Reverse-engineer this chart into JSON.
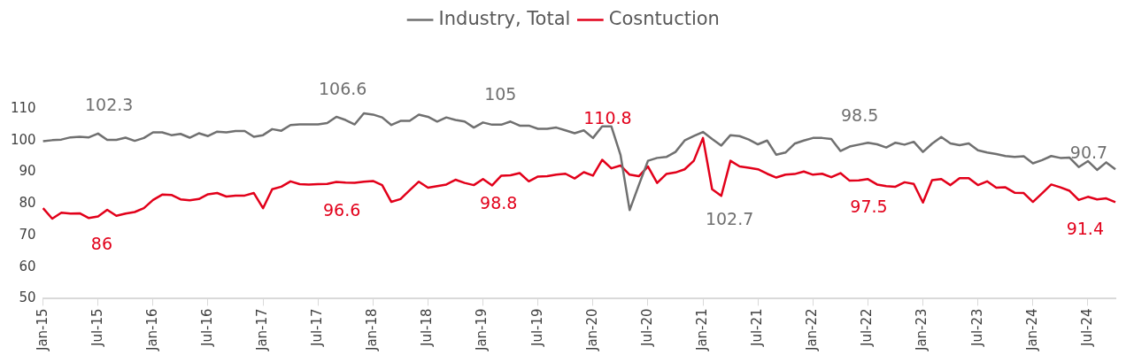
{
  "chart_data": {
    "type": "line",
    "legend": "top",
    "grid": false,
    "marker": "none",
    "line_style": "solid",
    "ylim": [
      50,
      110
    ],
    "yticks": [
      50,
      60,
      70,
      80,
      90,
      100,
      110
    ],
    "categories": [
      "Jan-15",
      null,
      null,
      null,
      null,
      null,
      "Jul-15",
      null,
      null,
      null,
      null,
      null,
      "Jan-16",
      null,
      null,
      null,
      null,
      null,
      "Jul-16",
      null,
      null,
      null,
      null,
      null,
      "Jan-17",
      null,
      null,
      null,
      null,
      null,
      "Jul-17",
      null,
      null,
      null,
      null,
      null,
      "Jan-18",
      null,
      null,
      null,
      null,
      null,
      "Jul-18",
      null,
      null,
      null,
      null,
      null,
      "Jan-19",
      null,
      null,
      null,
      null,
      null,
      "Jul-19",
      null,
      null,
      null,
      null,
      null,
      "Jan-20",
      null,
      null,
      null,
      null,
      null,
      "Jul-20",
      null,
      null,
      null,
      null,
      null,
      "Jan-21",
      null,
      null,
      null,
      null,
      null,
      "Jul-21",
      null,
      null,
      null,
      null,
      null,
      "Jan-22",
      null,
      null,
      null,
      null,
      null,
      "Jul-22",
      null,
      null,
      null,
      null,
      null,
      "Jan-23",
      null,
      null,
      null,
      null,
      null,
      "Jul-23",
      null,
      null,
      null,
      null,
      null,
      "Jan-24",
      null,
      null,
      null,
      null,
      null,
      "Jul-24",
      null,
      null,
      null
    ],
    "series": [
      {
        "name": "Industry, Total",
        "color": "#707070",
        "values": [
          99.8,
          100.1,
          100.3,
          101.0,
          101.2,
          101.0,
          102.2,
          100.2,
          100.2,
          100.9,
          99.9,
          100.8,
          102.6,
          102.6,
          101.7,
          102.1,
          100.9,
          102.3,
          101.4,
          102.8,
          102.6,
          103.0,
          103.0,
          101.2,
          101.7,
          103.6,
          103.1,
          104.9,
          105.1,
          105.1,
          105.1,
          105.5,
          107.5,
          106.5,
          105.1,
          108.6,
          108.2,
          107.3,
          104.9,
          106.2,
          106.2,
          108.2,
          107.5,
          106.0,
          107.3,
          106.5,
          106.0,
          104.1,
          105.7,
          105.0,
          105.0,
          106.0,
          104.7,
          104.7,
          103.7,
          103.7,
          104.1,
          103.2,
          102.3,
          103.2,
          100.8,
          104.5,
          104.5,
          95.5,
          78.0,
          85.9,
          93.6,
          94.5,
          94.8,
          96.4,
          100.0,
          101.4,
          102.7,
          100.5,
          98.4,
          101.7,
          101.4,
          100.3,
          98.8,
          100.0,
          95.5,
          96.2,
          99.0,
          100.0,
          100.8,
          100.8,
          100.5,
          96.7,
          98.1,
          98.7,
          99.3,
          98.8,
          97.8,
          99.3,
          98.7,
          99.6,
          96.4,
          99.0,
          101.1,
          99.1,
          98.5,
          99.1,
          96.9,
          96.2,
          95.7,
          95.1,
          94.8,
          95.0,
          92.8,
          93.8,
          95.1,
          94.5,
          94.6,
          91.6,
          93.5,
          90.7,
          93.1,
          90.9
        ]
      },
      {
        "name": "Cosntuction",
        "color": "#e2001a",
        "values": [
          78.6,
          75.3,
          77.2,
          76.9,
          77.0,
          75.5,
          76.0,
          78.1,
          76.2,
          76.9,
          77.4,
          78.6,
          81.2,
          82.9,
          82.8,
          81.4,
          81.1,
          81.5,
          83.0,
          83.4,
          82.3,
          82.6,
          82.6,
          83.4,
          78.6,
          84.6,
          85.4,
          87.1,
          86.2,
          86.1,
          86.2,
          86.3,
          86.9,
          86.7,
          86.6,
          87.0,
          87.2,
          85.9,
          80.6,
          81.5,
          84.3,
          87.0,
          85.1,
          85.6,
          86.1,
          87.6,
          86.6,
          85.9,
          87.8,
          85.8,
          88.9,
          89.0,
          89.7,
          87.1,
          88.6,
          88.7,
          89.2,
          89.5,
          88.0,
          90.0,
          88.9,
          93.9,
          91.2,
          92.1,
          89.2,
          88.7,
          91.8,
          86.6,
          89.4,
          89.9,
          90.9,
          93.6,
          100.8,
          84.6,
          82.5,
          93.6,
          91.8,
          91.4,
          90.9,
          89.5,
          88.3,
          89.2,
          89.4,
          90.2,
          89.2,
          89.5,
          88.4,
          89.7,
          87.3,
          87.4,
          87.8,
          86.1,
          85.6,
          85.4,
          86.8,
          86.3,
          80.4,
          87.5,
          87.8,
          85.9,
          88.1,
          88.1,
          85.9,
          87.1,
          85.1,
          85.2,
          83.5,
          83.4,
          80.6,
          83.3,
          86.1,
          85.2,
          84.1,
          81.2,
          82.2,
          81.4,
          81.7,
          80.5
        ]
      }
    ],
    "annotations": [
      "102.3",
      "106.6",
      "105",
      "86",
      "96.6",
      "98.8",
      "110.8",
      "102.7",
      "98.5",
      "97.5",
      "90.7",
      "91.4"
    ]
  }
}
